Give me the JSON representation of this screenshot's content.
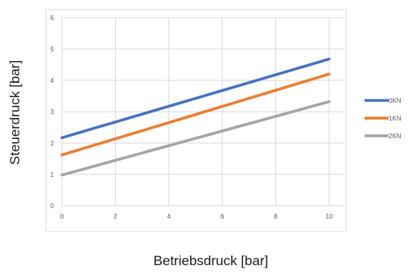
{
  "chart_data": {
    "type": "line",
    "title": "",
    "xlabel": "Betriebsdruck [bar]",
    "ylabel": "Steuerdruck [bar]",
    "xlim": [
      0,
      10
    ],
    "ylim": [
      0,
      6
    ],
    "x_ticks": [
      0,
      2,
      4,
      6,
      8,
      10
    ],
    "y_ticks": [
      0,
      1,
      2,
      3,
      4,
      5,
      6
    ],
    "grid": true,
    "legend": "right",
    "x": [
      0,
      10
    ],
    "series": [
      {
        "name": "0KN",
        "color": "#4472C4",
        "values": [
          2.17,
          4.68
        ]
      },
      {
        "name": "1KN",
        "color": "#ED7D31",
        "values": [
          1.62,
          4.2
        ]
      },
      {
        "name": "2KN",
        "color": "#A5A5A5",
        "values": [
          0.98,
          3.32
        ]
      }
    ]
  }
}
